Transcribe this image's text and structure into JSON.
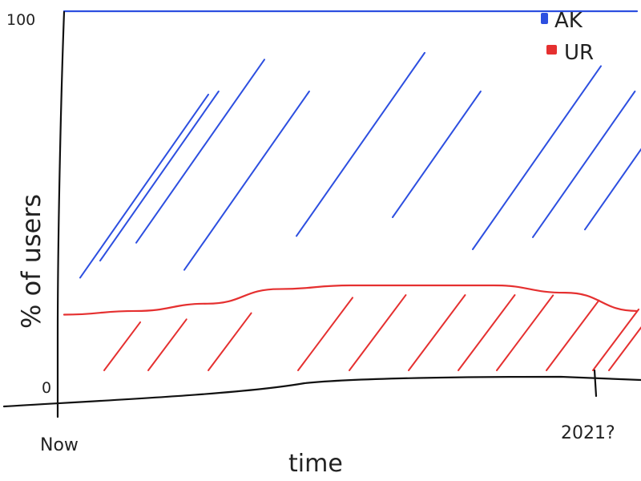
{
  "chart_data": {
    "type": "area",
    "title": "",
    "xlabel": "time",
    "ylabel": "% of users",
    "x_tick_labels": [
      "Now",
      "2021?"
    ],
    "y_tick_labels": [
      "0",
      "100"
    ],
    "ylim": [
      0,
      100
    ],
    "x": [
      "Now",
      "",
      "",
      "",
      "",
      "",
      "",
      "",
      "2021?"
    ],
    "series": [
      {
        "name": "AK",
        "color": "#2d4fe0",
        "values": [
          83,
          82,
          80,
          76,
          75,
          75,
          75,
          77,
          82
        ]
      },
      {
        "name": "UR",
        "color": "#e53030",
        "values": [
          17,
          18,
          20,
          24,
          25,
          25,
          25,
          23,
          18
        ]
      }
    ],
    "stacked": true,
    "legend_position": "top-right",
    "grid": false
  }
}
